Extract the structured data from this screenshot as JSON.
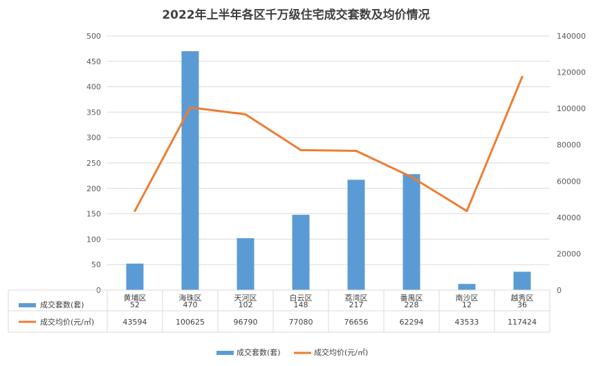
{
  "chart_data": {
    "type": "bar+line",
    "title": "2022年上半年各区千万级住宅成交套数及均价情况",
    "categories": [
      "黄埔区",
      "海珠区",
      "天河区",
      "白云区",
      "荔湾区",
      "番禺区",
      "南沙区",
      "越秀区"
    ],
    "series": [
      {
        "name": "成交套数(套)",
        "type": "bar",
        "axis": "left",
        "color": "#5b9bd5",
        "values": [
          52,
          470,
          102,
          148,
          217,
          228,
          12,
          36
        ],
        "labels": [
          "52",
          "470",
          "102",
          "148",
          "217",
          "228",
          "12",
          "36"
        ]
      },
      {
        "name": "成交均价(元/㎡)",
        "type": "line",
        "axis": "right",
        "color": "#ed7d31",
        "values": [
          43594,
          100625,
          96790,
          77080,
          76656,
          62294,
          43533,
          117424
        ],
        "labels": [
          "43594",
          "100625",
          "96790",
          "77080",
          "76656",
          "62294",
          "43533",
          "117424"
        ]
      }
    ],
    "y_left": {
      "min": 0,
      "max": 500,
      "step": 50,
      "ticks": [
        "0",
        "50",
        "100",
        "150",
        "200",
        "250",
        "300",
        "350",
        "400",
        "450",
        "500"
      ]
    },
    "y_right": {
      "min": 0,
      "max": 140000,
      "step": 20000,
      "ticks": [
        "0",
        "20000",
        "40000",
        "60000",
        "80000",
        "100000",
        "120000",
        "140000"
      ]
    },
    "grid": true,
    "data_table": true,
    "legend": "bottom"
  }
}
